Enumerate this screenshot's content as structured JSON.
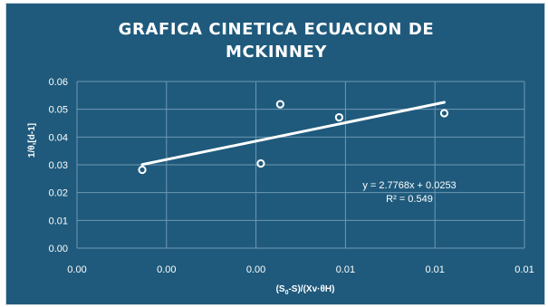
{
  "chart_data": {
    "type": "scatter",
    "title_lines": [
      "GRAFICA CINETICA ECUACION DE",
      "MCKINNEY"
    ],
    "xlabel": "(S₀-S)/(Xv·θH)",
    "ylabel": "1/θ,[d-1]",
    "x_tick_labels": [
      "0.00",
      "0.00",
      "0.00",
      "0.01",
      "0.01",
      "0.01"
    ],
    "y_tick_labels": [
      "0.00",
      "0.01",
      "0.02",
      "0.03",
      "0.04",
      "0.05",
      "0.06"
    ],
    "xlim": [
      0,
      0.012
    ],
    "ylim": [
      0,
      0.06
    ],
    "grid": true,
    "points": [
      {
        "x": 0.00175,
        "y": 0.0282
      },
      {
        "x": 0.00493,
        "y": 0.0305
      },
      {
        "x": 0.00545,
        "y": 0.0518
      },
      {
        "x": 0.00703,
        "y": 0.0471
      },
      {
        "x": 0.00985,
        "y": 0.0486
      }
    ],
    "trendline": {
      "type": "linear",
      "x_range": [
        0.00175,
        0.00985
      ],
      "y_range": [
        0.0301,
        0.0525
      ],
      "equation": "y = 2.7768x + 0.0253",
      "r_squared": "R² = 0.549"
    },
    "colors": {
      "background": "#1f5a7c",
      "foreground": "#ffffff",
      "grid": "#6f98b3"
    }
  }
}
